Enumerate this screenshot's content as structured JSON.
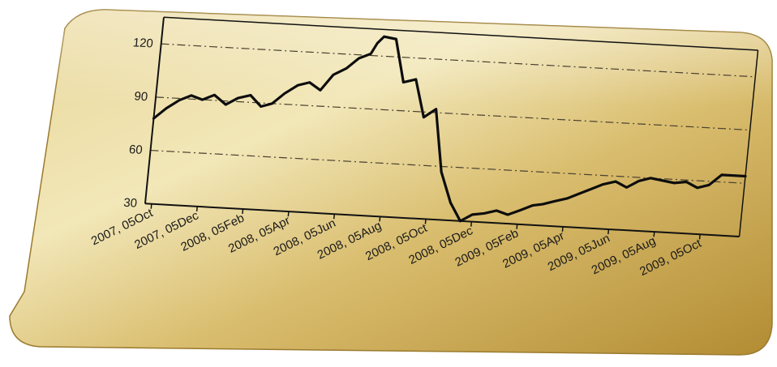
{
  "chart_data": {
    "type": "line",
    "title": "",
    "xlabel": "",
    "ylabel": "",
    "ylim": [
      30,
      135
    ],
    "yticks": [
      30,
      60,
      90,
      120
    ],
    "grid": true,
    "x_tick_labels": [
      "2007, 05Oct",
      "2007, 05Dec",
      "2008, 05Feb",
      "2008, 05Apr",
      "2008, 05Jun",
      "2008, 05Aug",
      "2008, 05Oct",
      "2008, 05Dec",
      "2009, 05Feb",
      "2009, 05Apr",
      "2009, 05Jun",
      "2009, 05Aug",
      "2009, 05Oct"
    ],
    "x": [
      "2007-10-05",
      "2007-10-20",
      "2007-11-05",
      "2007-11-20",
      "2007-12-05",
      "2007-12-20",
      "2008-01-05",
      "2008-01-20",
      "2008-02-05",
      "2008-02-20",
      "2008-03-05",
      "2008-03-20",
      "2008-04-05",
      "2008-04-20",
      "2008-05-05",
      "2008-05-20",
      "2008-06-05",
      "2008-06-20",
      "2008-07-05",
      "2008-07-12",
      "2008-07-20",
      "2008-08-05",
      "2008-08-20",
      "2008-09-05",
      "2008-09-20",
      "2008-10-05",
      "2008-10-20",
      "2008-11-05",
      "2008-11-20",
      "2008-12-05",
      "2008-12-20",
      "2009-01-05",
      "2009-01-20",
      "2009-02-05",
      "2009-02-20",
      "2009-03-05",
      "2009-03-20",
      "2009-04-05",
      "2009-04-20",
      "2009-05-05",
      "2009-05-20",
      "2009-06-05",
      "2009-06-20",
      "2009-07-05",
      "2009-07-20",
      "2009-08-05",
      "2009-08-20",
      "2009-09-05",
      "2009-09-20",
      "2009-10-05",
      "2009-10-20",
      "2009-11-05",
      "2009-11-20"
    ],
    "series": [
      {
        "values": [
          78,
          84,
          89,
          92,
          90,
          93,
          88,
          92,
          94,
          88,
          90,
          96,
          101,
          103,
          99,
          108,
          112,
          118,
          121,
          127,
          131,
          130,
          106,
          108,
          87,
          92,
          57,
          40,
          30,
          34,
          35,
          37,
          35,
          38,
          41,
          42,
          44,
          46,
          49,
          52,
          55,
          57,
          54,
          58,
          60,
          59,
          58,
          59,
          56,
          58,
          64,
          64,
          64
        ]
      }
    ]
  }
}
